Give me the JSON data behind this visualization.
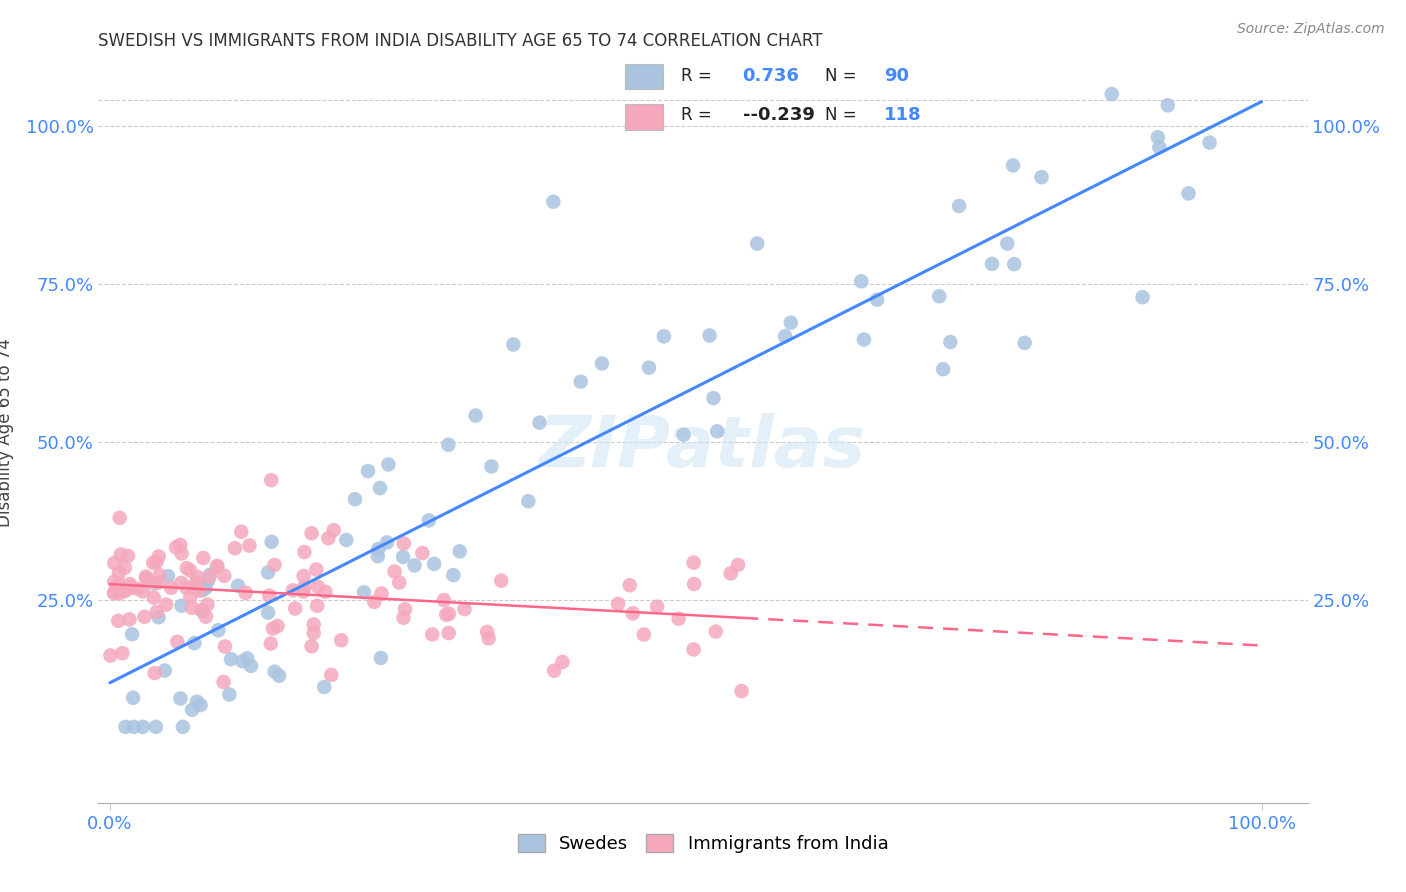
{
  "title": "SWEDISH VS IMMIGRANTS FROM INDIA DISABILITY AGE 65 TO 74 CORRELATION CHART",
  "source": "Source: ZipAtlas.com",
  "ylabel": "Disability Age 65 to 74",
  "ytick_labels": [
    "25.0%",
    "50.0%",
    "75.0%",
    "100.0%"
  ],
  "ytick_positions": [
    0.25,
    0.5,
    0.75,
    1.0
  ],
  "swedes_color": "#aac4e0",
  "swedes_line_color": "#4488ff",
  "india_color": "#f5a8bc",
  "india_line_color": "#ff6688",
  "swedes_R": 0.736,
  "swedes_N": 90,
  "india_R": -0.239,
  "india_N": 118,
  "watermark_text": "ZIPatlas",
  "legend_swedes_R": "0.736",
  "legend_swedes_N": "90",
  "legend_india_R": "-0.239",
  "legend_india_N": "118"
}
